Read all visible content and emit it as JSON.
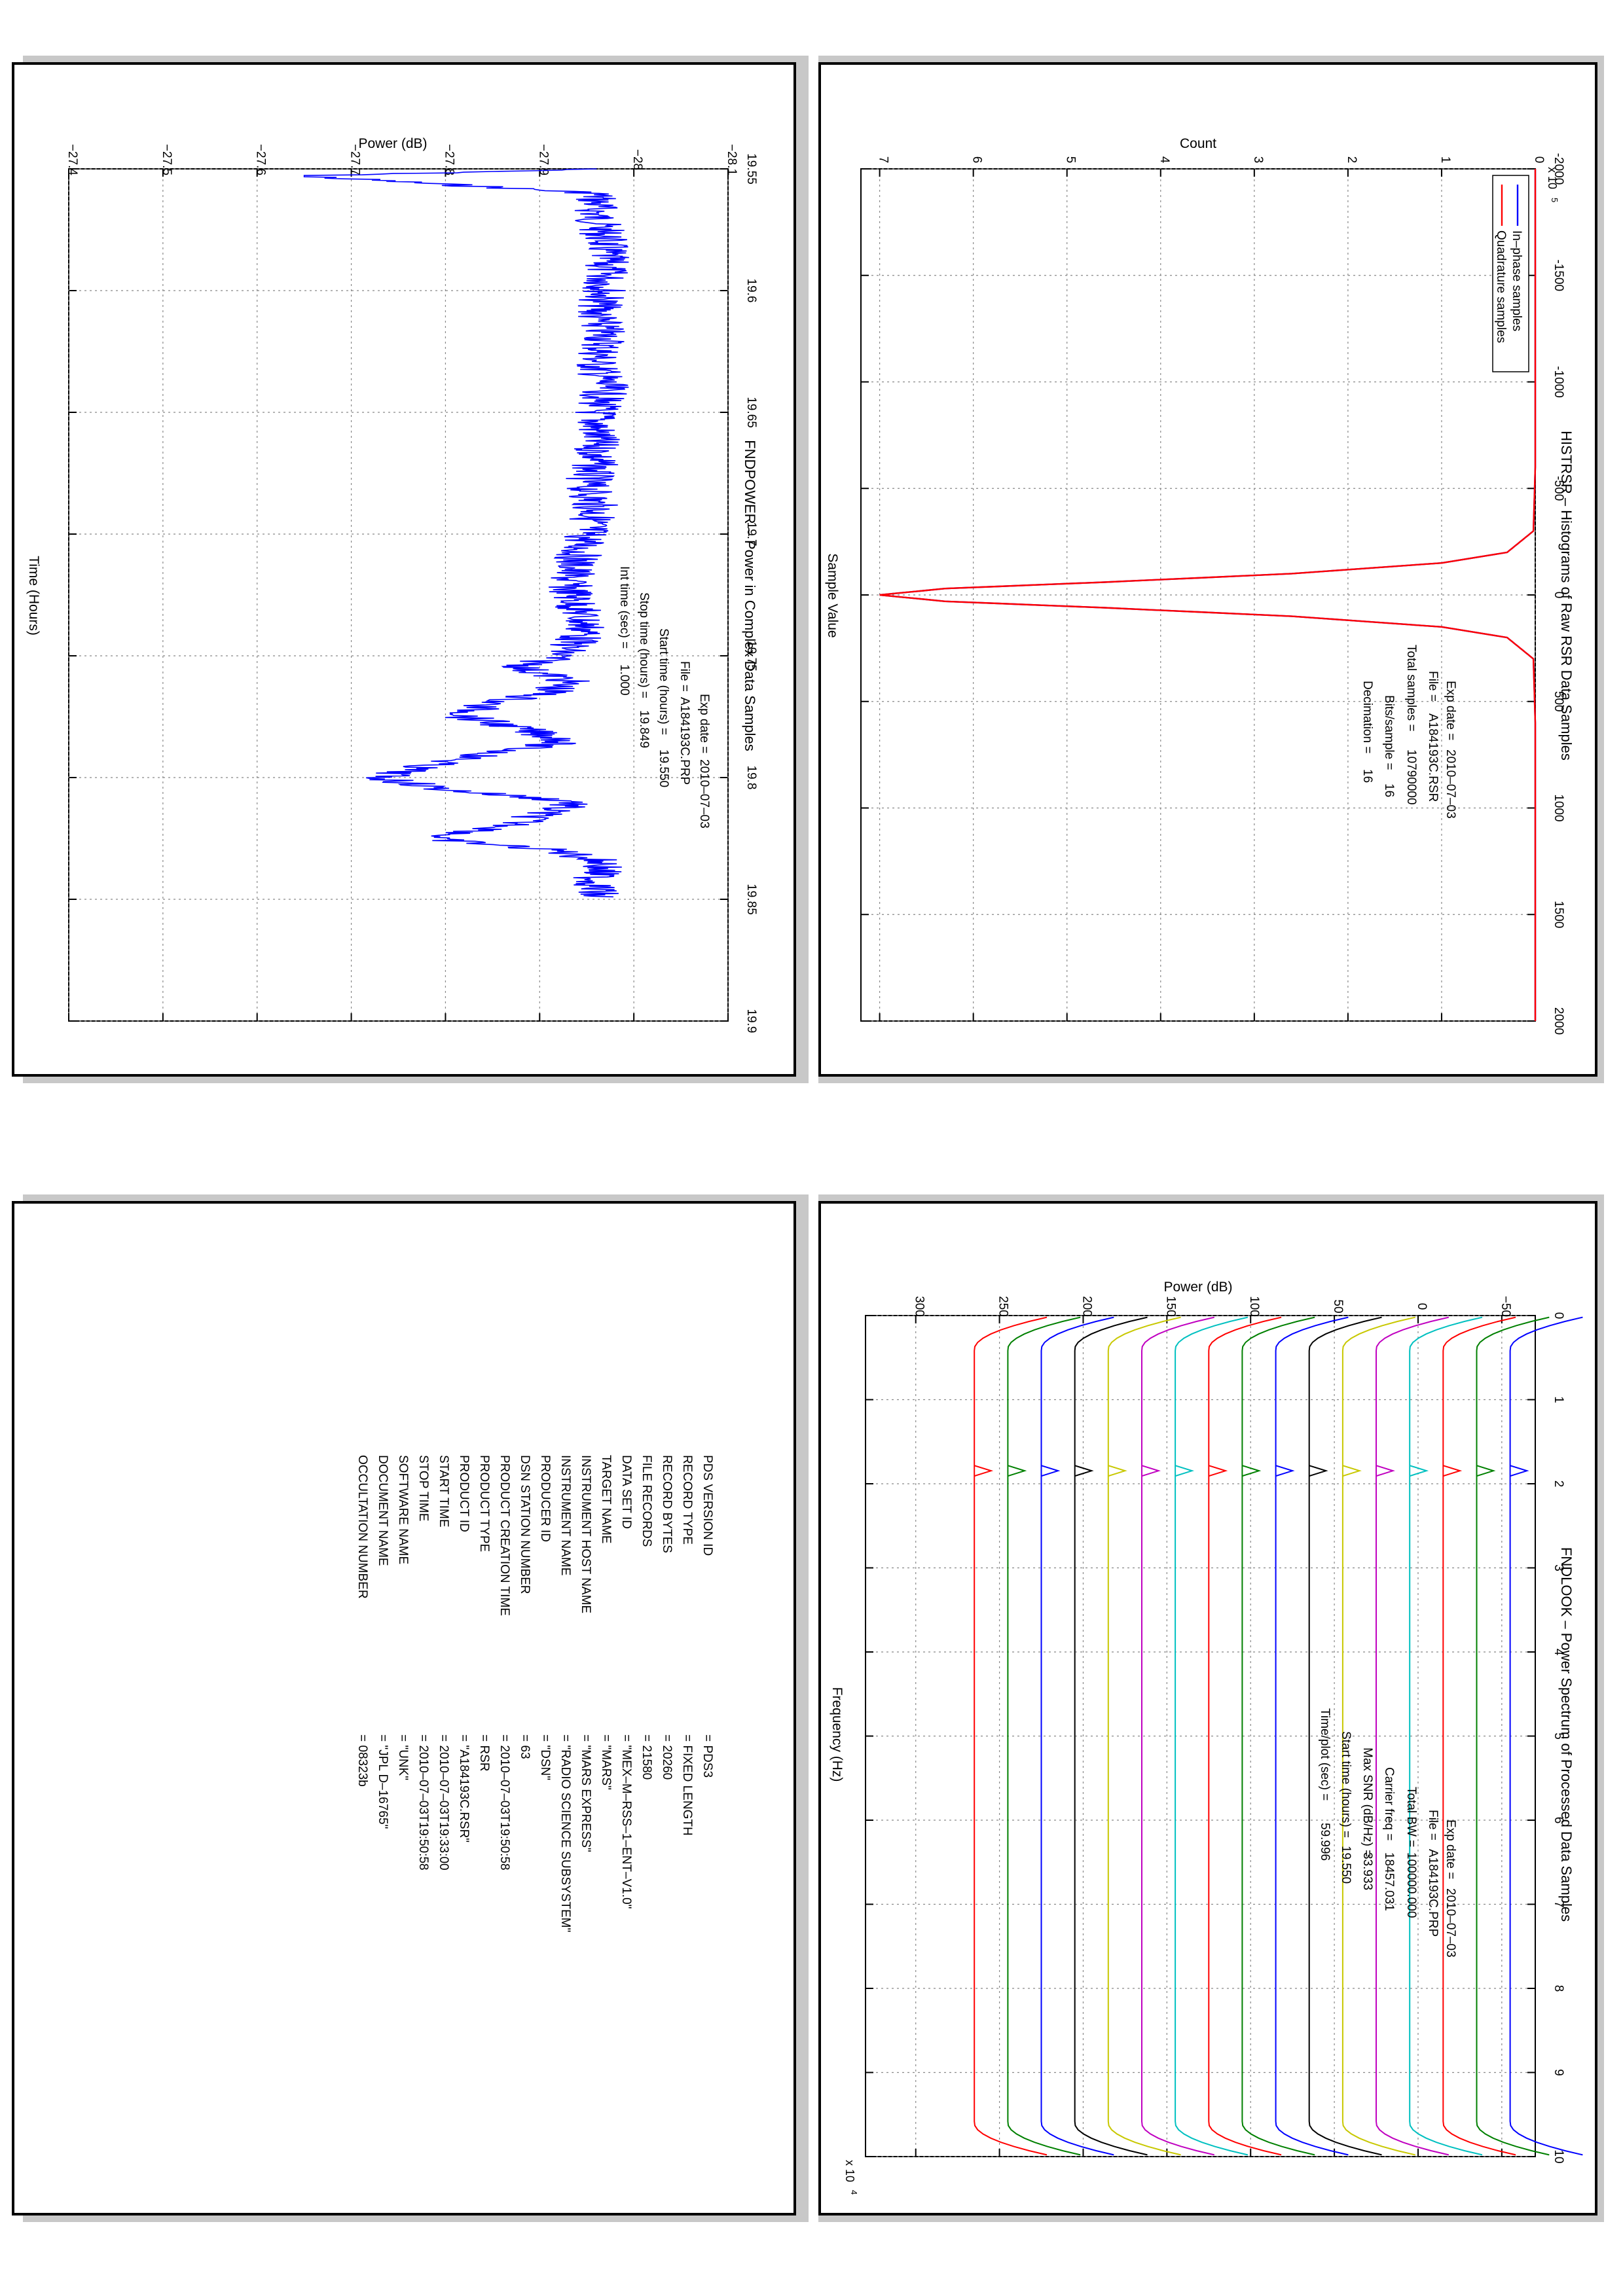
{
  "chart_data": [
    {
      "id": "histrsr",
      "type": "line",
      "title": "HISTRSR – Histograms of Raw RSR Data Samples",
      "xlabel": "Sample Value",
      "ylabel": "Count",
      "y_multiplier": "x 10",
      "y_multiplier_exp": "5",
      "xlim": [
        -2000,
        2000
      ],
      "ylim": [
        0,
        7.2
      ],
      "xticks": [
        -2000,
        -1500,
        -1000,
        -500,
        0,
        500,
        1000,
        1500,
        2000
      ],
      "yticks": [
        0,
        1,
        2,
        3,
        4,
        5,
        6,
        7
      ],
      "grid": true,
      "legend_placement": "top-left",
      "series": [
        {
          "name": "In–phase samples",
          "color": "#0000ff",
          "x": [
            -2000,
            -1000,
            -600,
            -300,
            -200,
            -150,
            -100,
            -60,
            -30,
            0,
            30,
            60,
            100,
            150,
            200,
            300,
            600,
            1000,
            2000
          ],
          "y": [
            0,
            0,
            0,
            0.02,
            0.3,
            1.0,
            2.6,
            4.6,
            6.3,
            7.0,
            6.3,
            4.6,
            2.6,
            1.0,
            0.3,
            0.02,
            0,
            0,
            0
          ]
        },
        {
          "name": "Quadrature samples",
          "color": "#ff0000",
          "x": [
            -2000,
            -1000,
            -600,
            -300,
            -200,
            -150,
            -100,
            -60,
            -30,
            0,
            30,
            60,
            100,
            150,
            200,
            300,
            600,
            1000,
            2000
          ],
          "y": [
            0,
            0,
            0,
            0.02,
            0.3,
            1.0,
            2.6,
            4.6,
            6.3,
            7.0,
            6.3,
            4.6,
            2.6,
            1.0,
            0.3,
            0.02,
            0,
            0,
            0
          ]
        }
      ],
      "annotations": [
        {
          "label": "Exp date =",
          "value": "2010–07–03"
        },
        {
          "label": "File =",
          "value": "A184193C.RSR"
        },
        {
          "label": "Total samples =",
          "value": "10790000"
        },
        {
          "label": "Bits/sample   =",
          "value": "16"
        },
        {
          "label": "Decimation    =",
          "value": "16"
        }
      ]
    },
    {
      "id": "fndpower",
      "type": "line",
      "title": "FNDPOWER – Power in Complex Data Samples",
      "xlabel": "Time (Hours)",
      "ylabel": "Power (dB)",
      "xlim": [
        19.55,
        19.9
      ],
      "ylim": [
        -28.1,
        -27.4
      ],
      "xticks": [
        "19.55",
        "19.6",
        "19.65",
        "19.7",
        "19.75",
        "19.8",
        "19.85",
        "19.9"
      ],
      "yticks": [
        "−28.1",
        "−28",
        "−27.9",
        "−27.8",
        "−27.7",
        "−27.6",
        "−27.5",
        "−27.4"
      ],
      "grid": true,
      "series": [
        {
          "name": "",
          "color": "#0000ff",
          "x": [
            19.55,
            19.553,
            19.56,
            19.57,
            19.58,
            19.59,
            19.6,
            19.61,
            19.62,
            19.63,
            19.64,
            19.65,
            19.66,
            19.67,
            19.68,
            19.69,
            19.7,
            19.71,
            19.72,
            19.73,
            19.74,
            19.75,
            19.755,
            19.76,
            19.765,
            19.77,
            19.775,
            19.78,
            19.785,
            19.79,
            19.795,
            19.8,
            19.805,
            19.81,
            19.815,
            19.82,
            19.825,
            19.83,
            19.835,
            19.84,
            19.849
          ],
          "y": [
            -27.96,
            -27.65,
            -27.96,
            -27.96,
            -27.97,
            -27.97,
            -27.97,
            -27.96,
            -27.97,
            -27.96,
            -27.97,
            -27.96,
            -27.96,
            -27.96,
            -27.95,
            -27.96,
            -27.95,
            -27.94,
            -27.93,
            -27.94,
            -27.95,
            -27.92,
            -27.88,
            -27.93,
            -27.91,
            -27.84,
            -27.82,
            -27.88,
            -27.93,
            -27.85,
            -27.78,
            -27.73,
            -27.8,
            -27.94,
            -27.9,
            -27.87,
            -27.78,
            -27.92,
            -27.97,
            -27.96,
            -27.96
          ]
        }
      ],
      "annotations": [
        {
          "label": "Exp date =",
          "value": "2010–07–03"
        },
        {
          "label": "File =",
          "value": "A184193C.PRP"
        },
        {
          "label": "Start time (hours) =",
          "value": "19.550"
        },
        {
          "label": "Stop time (hours) =",
          "value": "19.849"
        },
        {
          "label": "Int time (sec) =",
          "value": "1.000"
        }
      ]
    },
    {
      "id": "fndlook",
      "type": "line",
      "title": "FNDLOOK – Power Spectrum of Processed Data Samples",
      "xlabel": "Frequency (Hz)",
      "ylabel": "Power (dB)",
      "x_multiplier": "x 10",
      "x_multiplier_exp": "4",
      "xlim": [
        0,
        10
      ],
      "ylim": [
        -70,
        330
      ],
      "xticks": [
        0,
        1,
        2,
        3,
        4,
        5,
        6,
        7,
        8,
        9,
        10
      ],
      "yticks": [
        "−50",
        "0",
        "50",
        "100",
        "150",
        "200",
        "250",
        "300"
      ],
      "grid": true,
      "series_colors": [
        "#ff0000",
        "#008000",
        "#0000ff",
        "#000000",
        "#c8c800",
        "#c000c0",
        "#00c0c0",
        "#ff0000",
        "#008000",
        "#0000ff",
        "#000000",
        "#c8c800",
        "#c000c0",
        "#00c0c0",
        "#ff0000",
        "#008000",
        "#0000ff"
      ],
      "series_levels": [
        265,
        245,
        225,
        205,
        185,
        165,
        145,
        125,
        105,
        85,
        65,
        45,
        25,
        5,
        -15,
        -35,
        -55
      ],
      "carrier_frequency": 1.8457,
      "annotations": [
        {
          "label": "Exp date =",
          "value": "2010–07–03"
        },
        {
          "label": "File =",
          "value": "A184193C.PRP"
        },
        {
          "label": "Total BW =",
          "value": "100000.000"
        },
        {
          "label": "Carrier freq =",
          "value": "18457.031"
        },
        {
          "label": "Max SNR (dB/Hz) =",
          "value": "33.933"
        },
        {
          "label": "Start time (hours) =",
          "value": "19.550"
        },
        {
          "label": "Time/plot (sec) =",
          "value": "59.996"
        }
      ]
    }
  ],
  "label_table": [
    {
      "key": "PDS VERSION ID",
      "value": "= PDS3"
    },
    {
      "key": "RECORD TYPE",
      "value": "= FIXED LENGTH"
    },
    {
      "key": "RECORD BYTES",
      "value": "= 20260"
    },
    {
      "key": "FILE RECORDS",
      "value": "= 21580"
    },
    {
      "key": "DATA SET ID",
      "value": "= \"MEX–M–RSS–1–ENT–V1.0\""
    },
    {
      "key": "TARGET NAME",
      "value": "= \"MARS\""
    },
    {
      "key": "INSTRUMENT HOST NAME",
      "value": "= \"MARS EXPRESS\""
    },
    {
      "key": "INSTRUMENT NAME",
      "value": "= \"RADIO SCIENCE SUBSYSTEM\""
    },
    {
      "key": "PRODUCER ID",
      "value": "= \"DSN\""
    },
    {
      "key": "DSN STATION NUMBER",
      "value": "= 63"
    },
    {
      "key": "PRODUCT CREATION TIME",
      "value": "= 2010–07–03T19:50:58"
    },
    {
      "key": "PRODUCT TYPE",
      "value": "= RSR"
    },
    {
      "key": "PRODUCT ID",
      "value": "= \"A184193C.RSR\""
    },
    {
      "key": "START TIME",
      "value": "= 2010–07–03T19:33:00"
    },
    {
      "key": "STOP TIME",
      "value": "= 2010–07–03T19:50:58"
    },
    {
      "key": "SOFTWARE NAME",
      "value": "= \"UNK\""
    },
    {
      "key": "DOCUMENT NAME",
      "value": "= \"JPL D–16765\""
    },
    {
      "key": "",
      "value": ""
    },
    {
      "key": "OCCULTATION NUMBER",
      "value": "= 08323b"
    }
  ]
}
